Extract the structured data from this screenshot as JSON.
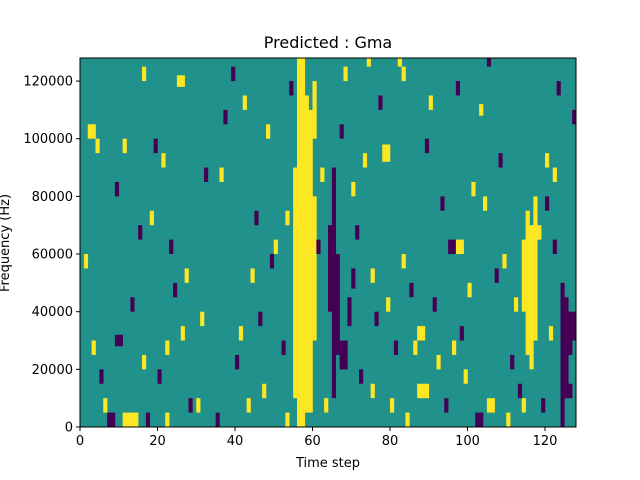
{
  "chart_data": {
    "type": "heatmap",
    "title": "Predicted : Gma",
    "xlabel": "Time step",
    "ylabel": "Frequency (Hz)",
    "xlim": [
      0,
      128
    ],
    "ylim": [
      0,
      128000
    ],
    "xticks": [
      0,
      20,
      40,
      60,
      80,
      100,
      120
    ],
    "xtick_labels": [
      "0",
      "20",
      "40",
      "60",
      "80",
      "100",
      "120"
    ],
    "yticks": [
      0,
      20000,
      40000,
      60000,
      80000,
      100000,
      120000
    ],
    "ytick_labels": [
      "0",
      "20000",
      "40000",
      "60000",
      "80000",
      "100000",
      "120000"
    ],
    "grid": false,
    "legend": "none",
    "colormap": "viridis",
    "value_range": [
      -1,
      1
    ],
    "colors": {
      "-1": "#440154",
      "0": "#21918c",
      "1": "#fde725"
    },
    "n_time_steps": 128,
    "n_freq_bins": 128,
    "bin_width_hz": 1000,
    "background_value": 0,
    "note_cells_format": "[time_step, freq_bin_start, freq_bin_end, value]",
    "cells": [
      [
        56,
        0,
        128,
        1
      ],
      [
        57,
        0,
        128,
        1
      ],
      [
        58,
        5,
        115,
        1
      ],
      [
        59,
        5,
        110,
        1
      ],
      [
        55,
        10,
        90,
        1
      ],
      [
        60,
        30,
        80,
        1
      ],
      [
        115,
        25,
        75,
        1
      ],
      [
        116,
        20,
        70,
        1
      ],
      [
        117,
        30,
        80,
        1
      ],
      [
        114,
        40,
        65,
        1
      ],
      [
        11,
        0,
        5,
        1
      ],
      [
        12,
        0,
        5,
        1
      ],
      [
        13,
        0,
        5,
        1
      ],
      [
        14,
        0,
        5,
        1
      ],
      [
        7,
        0,
        5,
        -1
      ],
      [
        8,
        0,
        5,
        -1
      ],
      [
        9,
        28,
        32,
        -1
      ],
      [
        10,
        28,
        32,
        -1
      ],
      [
        65,
        10,
        90,
        -1
      ],
      [
        66,
        25,
        60,
        -1
      ],
      [
        67,
        20,
        30,
        -1
      ],
      [
        68,
        20,
        30,
        -1
      ],
      [
        64,
        40,
        70,
        -1
      ],
      [
        69,
        35,
        45,
        -1
      ],
      [
        70,
        48,
        55,
        -1
      ],
      [
        124,
        0,
        50,
        -1
      ],
      [
        125,
        10,
        45,
        -1
      ],
      [
        126,
        25,
        40,
        -1
      ],
      [
        127,
        30,
        40,
        -1
      ],
      [
        124,
        10,
        15,
        -1
      ],
      [
        125,
        10,
        15,
        -1
      ],
      [
        126,
        10,
        15,
        -1
      ],
      [
        95,
        60,
        65,
        -1
      ],
      [
        96,
        60,
        65,
        -1
      ],
      [
        97,
        60,
        65,
        1
      ],
      [
        98,
        60,
        65,
        1
      ],
      [
        87,
        30,
        35,
        1
      ],
      [
        88,
        30,
        35,
        1
      ],
      [
        86,
        25,
        30,
        1
      ],
      [
        87,
        10,
        15,
        1
      ],
      [
        88,
        10,
        15,
        1
      ],
      [
        89,
        10,
        15,
        1
      ],
      [
        105,
        5,
        10,
        1
      ],
      [
        106,
        5,
        10,
        1
      ],
      [
        102,
        0,
        5,
        -1
      ],
      [
        103,
        0,
        5,
        -1
      ],
      [
        2,
        100,
        105,
        1
      ],
      [
        3,
        100,
        105,
        1
      ],
      [
        25,
        118,
        122,
        1
      ],
      [
        26,
        118,
        122,
        1
      ],
      [
        56,
        100,
        105,
        1
      ],
      [
        57,
        100,
        105,
        1
      ],
      [
        78,
        92,
        98,
        1
      ],
      [
        79,
        92,
        98,
        1
      ],
      [
        60,
        100,
        120,
        1
      ],
      [
        56,
        125,
        128,
        1
      ],
      [
        83,
        120,
        125,
        1
      ],
      [
        82,
        125,
        128,
        1
      ],
      [
        90,
        110,
        115,
        1
      ],
      [
        103,
        108,
        112,
        1
      ],
      [
        120,
        90,
        95,
        1
      ],
      [
        122,
        85,
        90,
        1
      ],
      [
        6,
        5,
        10,
        1
      ],
      [
        22,
        0,
        5,
        1
      ],
      [
        30,
        5,
        10,
        1
      ],
      [
        43,
        5,
        10,
        1
      ],
      [
        47,
        10,
        15,
        1
      ],
      [
        53,
        0,
        5,
        1
      ],
      [
        63,
        5,
        10,
        1
      ],
      [
        75,
        10,
        15,
        1
      ],
      [
        80,
        5,
        10,
        1
      ],
      [
        84,
        0,
        5,
        1
      ],
      [
        110,
        0,
        5,
        1
      ],
      [
        114,
        5,
        10,
        1
      ],
      [
        16,
        20,
        25,
        1
      ],
      [
        26,
        30,
        35,
        1
      ],
      [
        31,
        35,
        40,
        1
      ],
      [
        41,
        30,
        35,
        1
      ],
      [
        44,
        50,
        55,
        1
      ],
      [
        50,
        60,
        65,
        1
      ],
      [
        53,
        70,
        75,
        1
      ],
      [
        62,
        85,
        90,
        1
      ],
      [
        70,
        80,
        85,
        1
      ],
      [
        73,
        90,
        95,
        1
      ],
      [
        75,
        50,
        55,
        1
      ],
      [
        79,
        40,
        45,
        1
      ],
      [
        83,
        55,
        60,
        1
      ],
      [
        92,
        20,
        25,
        1
      ],
      [
        100,
        45,
        50,
        1
      ],
      [
        104,
        75,
        80,
        1
      ],
      [
        109,
        55,
        60,
        1
      ],
      [
        112,
        40,
        45,
        1
      ],
      [
        118,
        65,
        70,
        1
      ],
      [
        121,
        30,
        35,
        1
      ],
      [
        4,
        95,
        100,
        1
      ],
      [
        11,
        95,
        100,
        1
      ],
      [
        18,
        70,
        75,
        1
      ],
      [
        21,
        90,
        95,
        1
      ],
      [
        36,
        85,
        90,
        1
      ],
      [
        42,
        110,
        115,
        1
      ],
      [
        48,
        100,
        105,
        1
      ],
      [
        27,
        50,
        55,
        1
      ],
      [
        22,
        25,
        30,
        1
      ],
      [
        3,
        25,
        30,
        1
      ],
      [
        1,
        55,
        60,
        1
      ],
      [
        16,
        120,
        125,
        1
      ],
      [
        68,
        120,
        125,
        1
      ],
      [
        74,
        125,
        128,
        1
      ],
      [
        96,
        25,
        30,
        1
      ],
      [
        99,
        15,
        20,
        1
      ],
      [
        101,
        80,
        85,
        1
      ],
      [
        17,
        0,
        5,
        -1
      ],
      [
        20,
        15,
        20,
        -1
      ],
      [
        28,
        5,
        10,
        -1
      ],
      [
        35,
        0,
        5,
        -1
      ],
      [
        40,
        20,
        25,
        -1
      ],
      [
        46,
        35,
        40,
        -1
      ],
      [
        52,
        25,
        30,
        -1
      ],
      [
        61,
        60,
        65,
        -1
      ],
      [
        72,
        15,
        20,
        -1
      ],
      [
        76,
        35,
        40,
        -1
      ],
      [
        81,
        25,
        30,
        -1
      ],
      [
        85,
        45,
        50,
        -1
      ],
      [
        91,
        40,
        45,
        -1
      ],
      [
        94,
        5,
        10,
        -1
      ],
      [
        98,
        30,
        35,
        -1
      ],
      [
        107,
        50,
        55,
        -1
      ],
      [
        111,
        20,
        25,
        -1
      ],
      [
        113,
        10,
        15,
        -1
      ],
      [
        119,
        5,
        10,
        -1
      ],
      [
        122,
        60,
        65,
        -1
      ],
      [
        5,
        15,
        20,
        -1
      ],
      [
        9,
        80,
        85,
        -1
      ],
      [
        13,
        40,
        45,
        -1
      ],
      [
        19,
        95,
        100,
        -1
      ],
      [
        23,
        60,
        65,
        -1
      ],
      [
        32,
        85,
        90,
        -1
      ],
      [
        37,
        105,
        110,
        -1
      ],
      [
        39,
        120,
        125,
        -1
      ],
      [
        45,
        70,
        75,
        -1
      ],
      [
        49,
        55,
        60,
        -1
      ],
      [
        54,
        115,
        120,
        -1
      ],
      [
        67,
        100,
        105,
        -1
      ],
      [
        71,
        65,
        70,
        -1
      ],
      [
        77,
        110,
        115,
        -1
      ],
      [
        89,
        95,
        100,
        -1
      ],
      [
        93,
        75,
        80,
        -1
      ],
      [
        97,
        115,
        120,
        -1
      ],
      [
        105,
        125,
        128,
        -1
      ],
      [
        108,
        90,
        95,
        -1
      ],
      [
        123,
        115,
        120,
        -1
      ],
      [
        127,
        105,
        110,
        -1
      ],
      [
        120,
        75,
        80,
        -1
      ],
      [
        15,
        65,
        70,
        -1
      ],
      [
        24,
        45,
        50,
        -1
      ]
    ]
  }
}
